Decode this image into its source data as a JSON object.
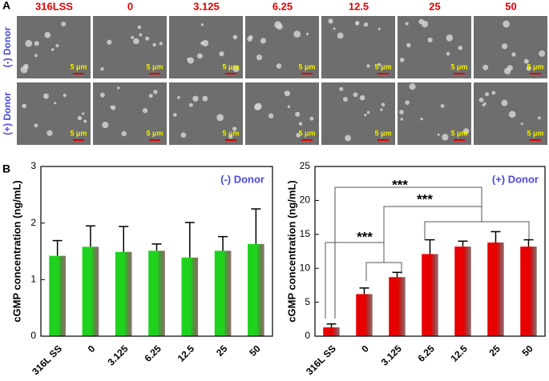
{
  "panel_a": {
    "label": "A",
    "columns": [
      "316LSS",
      "0",
      "3.125",
      "6.25",
      "12.5",
      "25",
      "50"
    ],
    "rows": [
      "(-) Donor",
      "(+) Donor"
    ],
    "scale_bar": "5 μm"
  },
  "panel_b_label": "B",
  "chart_data": [
    {
      "type": "bar",
      "y_label": "cGMP concentration (ng/mL)",
      "annotation": "(-) Donor",
      "categories": [
        "316L SS",
        "0",
        "3.125",
        "6.25",
        "12.5",
        "25",
        "50"
      ],
      "values": [
        1.42,
        1.58,
        1.49,
        1.51,
        1.39,
        1.51,
        1.63
      ],
      "errors": [
        0.27,
        0.37,
        0.45,
        0.12,
        0.62,
        0.25,
        0.62
      ],
      "color": "#1ed21e",
      "ylim": [
        0,
        3
      ],
      "yticks": [
        0,
        1,
        2,
        3
      ]
    },
    {
      "type": "bar",
      "y_label": "cGMP concentration (ng/mL)",
      "annotation": "(+) Donor",
      "categories": [
        "316L SS",
        "0",
        "3.125",
        "6.25",
        "12.5",
        "25",
        "50"
      ],
      "values": [
        1.3,
        6.2,
        8.7,
        12.1,
        13.2,
        13.8,
        13.2
      ],
      "errors": [
        0.5,
        0.9,
        0.7,
        2.1,
        0.8,
        1.6,
        1.0
      ],
      "color": "#e80000",
      "ylim": [
        0,
        25
      ],
      "yticks": [
        0,
        5,
        10,
        15,
        20,
        25
      ],
      "significance": [
        "***",
        "***",
        "***"
      ]
    }
  ]
}
